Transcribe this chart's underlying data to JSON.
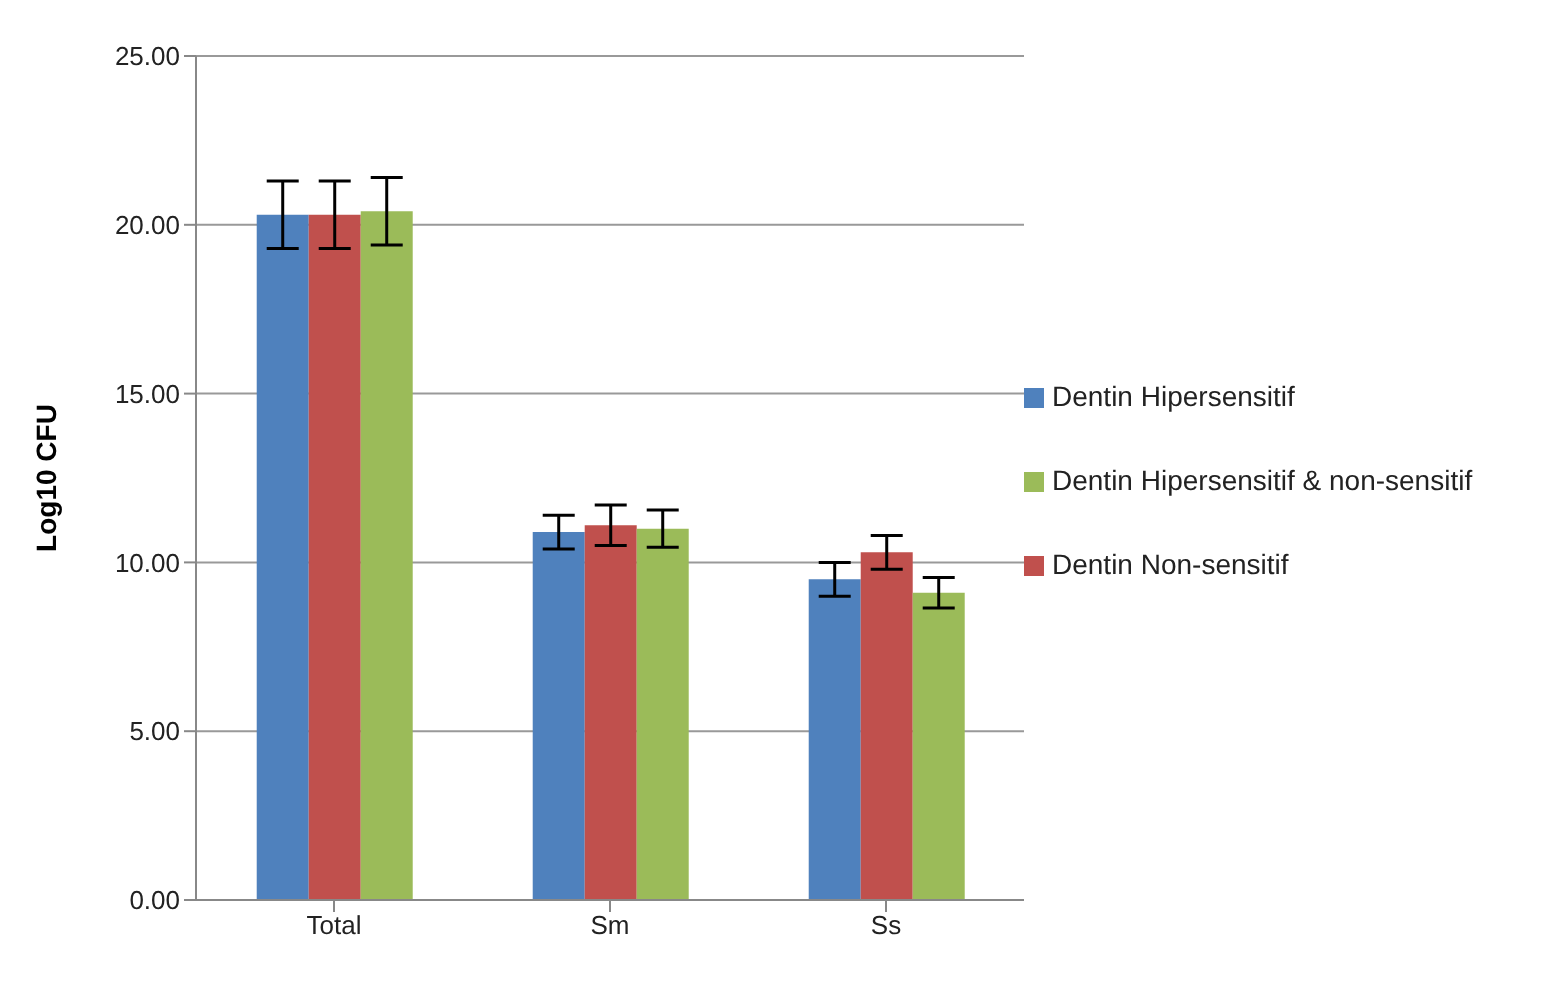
{
  "chart_data": {
    "type": "bar",
    "ylabel": "Log10 CFU",
    "categories": [
      "Total",
      "Sm",
      "Ss"
    ],
    "series": [
      {
        "name": "Dentin Hipersensitif",
        "color": "#4f81bd",
        "values": [
          20.3,
          10.9,
          9.5
        ],
        "errors": [
          1.0,
          0.5,
          0.5
        ]
      },
      {
        "name": "Dentin Non-sensitif",
        "color": "#c0504d",
        "values": [
          20.3,
          11.1,
          10.3
        ],
        "errors": [
          1.0,
          0.6,
          0.5
        ]
      },
      {
        "name": "Dentin Hipersensitif & non-sensitif",
        "color": "#9bbb59",
        "values": [
          20.4,
          11.0,
          9.1
        ],
        "errors": [
          1.0,
          0.55,
          0.45
        ]
      }
    ],
    "ylim": [
      0,
      25
    ],
    "yticks": [
      {
        "value": 0,
        "label": "0.00"
      },
      {
        "value": 5,
        "label": "5.00"
      },
      {
        "value": 10,
        "label": "10.00"
      },
      {
        "value": 15,
        "label": "15.00"
      },
      {
        "value": 20,
        "label": "20.00"
      },
      {
        "value": 25,
        "label": "25.00"
      }
    ],
    "grid": "y",
    "legend": "right"
  }
}
